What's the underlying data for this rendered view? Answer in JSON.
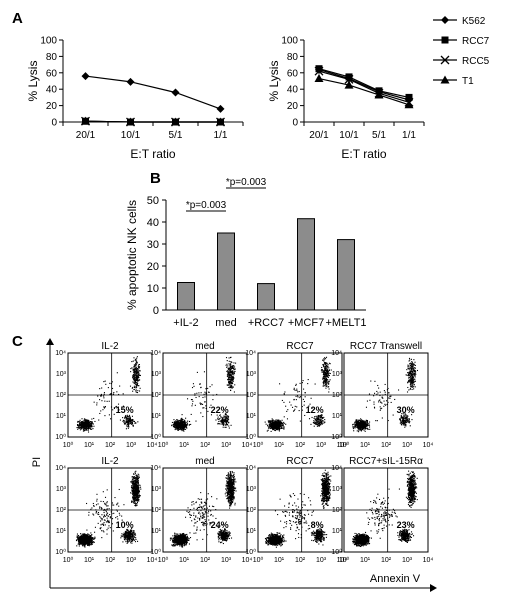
{
  "panel_labels": {
    "a": "A",
    "b": "B",
    "c": "C"
  },
  "legend": [
    {
      "name": "K562",
      "marker": "diamond"
    },
    {
      "name": "RCC7",
      "marker": "square"
    },
    {
      "name": "RCC5",
      "marker": "cross"
    },
    {
      "name": "T1",
      "marker": "triangle"
    }
  ],
  "chart_data": [
    {
      "id": "A-left",
      "type": "line",
      "categories": [
        "20/1",
        "10/1",
        "5/1",
        "1/1"
      ],
      "xlabel": "E:T ratio",
      "ylabel": "% Lysis",
      "ylim": [
        0,
        100
      ],
      "yticks": [
        0,
        20,
        40,
        60,
        80,
        100
      ],
      "series": [
        {
          "name": "K562",
          "marker": "diamond",
          "values": [
            56,
            49,
            36,
            16
          ]
        },
        {
          "name": "RCC7",
          "marker": "square",
          "values": [
            1,
            0,
            0,
            0
          ]
        },
        {
          "name": "RCC5",
          "marker": "cross",
          "values": [
            1,
            0,
            0,
            0
          ]
        },
        {
          "name": "T1",
          "marker": "triangle",
          "values": [
            1,
            0,
            0,
            0
          ]
        }
      ]
    },
    {
      "id": "A-right",
      "type": "line",
      "categories": [
        "20/1",
        "10/1",
        "5/1",
        "1/1"
      ],
      "xlabel": "E:T ratio",
      "ylabel": "% Lysis",
      "ylim": [
        0,
        100
      ],
      "yticks": [
        0,
        20,
        40,
        60,
        80,
        100
      ],
      "series": [
        {
          "name": "K562",
          "marker": "diamond",
          "values": [
            64,
            53,
            37,
            27
          ]
        },
        {
          "name": "RCC7",
          "marker": "square",
          "values": [
            65,
            55,
            38,
            30
          ]
        },
        {
          "name": "RCC5",
          "marker": "cross",
          "values": [
            62,
            52,
            35,
            24
          ]
        },
        {
          "name": "T1",
          "marker": "triangle",
          "values": [
            53,
            45,
            33,
            21
          ]
        }
      ]
    },
    {
      "id": "B",
      "type": "bar",
      "categories": [
        "+IL-2",
        "med",
        "+RCC7",
        "+MCF7",
        "+MELT1"
      ],
      "values": [
        12.5,
        35,
        12,
        41.5,
        32
      ],
      "ylabel": "% apoptotic NK cells",
      "ylim": [
        0,
        50
      ],
      "yticks": [
        0,
        10,
        20,
        30,
        40,
        50
      ],
      "annotations": [
        {
          "text": "*p=0.003",
          "from": "+IL-2",
          "to": "med"
        },
        {
          "text": "*p=0.003",
          "from": "med",
          "to": "+RCC7"
        }
      ]
    },
    {
      "id": "C",
      "type": "scatter",
      "xlabel": "Annexin V",
      "ylabel": "PI",
      "axis_ticks": [
        "10⁰",
        "10¹",
        "10²",
        "10³",
        "10⁴"
      ],
      "rows": [
        [
          {
            "title": "IL-2",
            "percent": "15%"
          },
          {
            "title": "med",
            "percent": "22%"
          },
          {
            "title": "RCC7",
            "percent": "12%"
          },
          {
            "title": "RCC7 Transwell",
            "percent": "30%"
          }
        ],
        [
          {
            "title": "IL-2",
            "percent": "10%"
          },
          {
            "title": "med",
            "percent": "24%"
          },
          {
            "title": "RCC7",
            "percent": "8%"
          },
          {
            "title": "RCC7+sIL-15Rα",
            "percent": "23%"
          }
        ]
      ]
    }
  ]
}
